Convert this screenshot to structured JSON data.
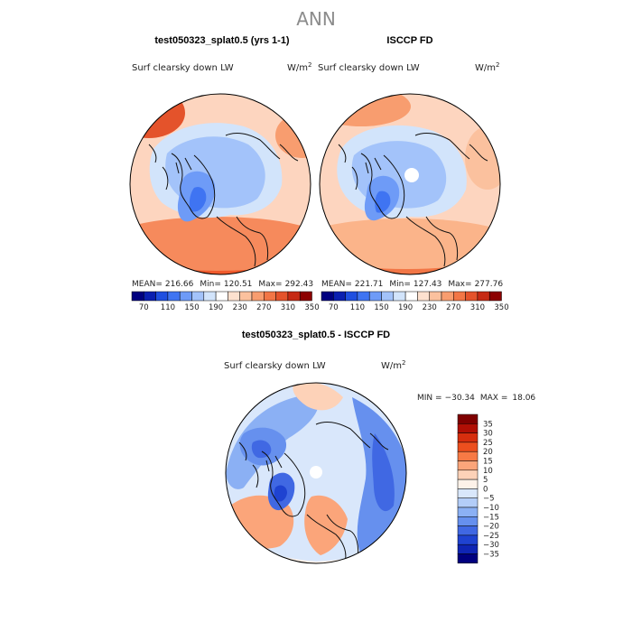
{
  "page_title": "ANN",
  "units": "W/m",
  "units_exp": "2",
  "chart_data": [
    {
      "type": "heatmap",
      "projection": "north-polar-stereographic",
      "title": "test050323_splat0.5 (yrs 1-1)",
      "variable": "Surf clearsky down LW",
      "stats": {
        "mean_label": "MEAN=",
        "mean": "216.66",
        "min_label": "Min=",
        "min": "120.51",
        "max_label": "Max=",
        "max": "292.43"
      },
      "colorbar_ticks": [
        "70",
        "110",
        "150",
        "190",
        "230",
        "270",
        "310",
        "350"
      ],
      "colorbar_levels": [
        70,
        90,
        110,
        130,
        150,
        170,
        190,
        210,
        230,
        250,
        270,
        290,
        310,
        330,
        350
      ]
    },
    {
      "type": "heatmap",
      "projection": "north-polar-stereographic",
      "title": "ISCCP FD",
      "variable": "Surf clearsky down LW",
      "stats": {
        "mean_label": "MEAN=",
        "mean": "221.71",
        "min_label": "Min=",
        "min": "127.43",
        "max_label": "Max=",
        "max": "277.76"
      },
      "colorbar_ticks": [
        "70",
        "110",
        "150",
        "190",
        "230",
        "270",
        "310",
        "350"
      ],
      "colorbar_levels": [
        70,
        90,
        110,
        130,
        150,
        170,
        190,
        210,
        230,
        250,
        270,
        290,
        310,
        330,
        350
      ]
    },
    {
      "type": "heatmap",
      "projection": "north-polar-stereographic",
      "title": "test050323_splat0.5 - ISCCP FD",
      "variable": "Surf clearsky down LW",
      "stats": {
        "min_label": "MIN =",
        "min": "−30.34",
        "max_label": "MAX =",
        "max": "18.06"
      },
      "colorbar_ticks": [
        "35",
        "30",
        "25",
        "20",
        "15",
        "10",
        "5",
        "0",
        "−5",
        "−10",
        "−15",
        "−20",
        "−25",
        "−30",
        "−35"
      ]
    }
  ],
  "colors": {
    "abs_scale": [
      "#00007f",
      "#0a1fb0",
      "#1f4fe0",
      "#3f74f2",
      "#6e9bf7",
      "#a3c3fa",
      "#d2e4fb",
      "#ffffff",
      "#fde1cf",
      "#fbc19e",
      "#f89d6f",
      "#f27646",
      "#e4532b",
      "#c62a14",
      "#8c0000"
    ],
    "diff_scale": [
      "#7f0000",
      "#b00f05",
      "#d62e0e",
      "#ec4f1e",
      "#f77a45",
      "#fba57a",
      "#fdd2b8",
      "#fdf2e9",
      "#d9e7fb",
      "#b3cdf8",
      "#8bb0f4",
      "#6690ee",
      "#4068e3",
      "#1f43d1",
      "#0f25b4",
      "#00007f"
    ]
  }
}
